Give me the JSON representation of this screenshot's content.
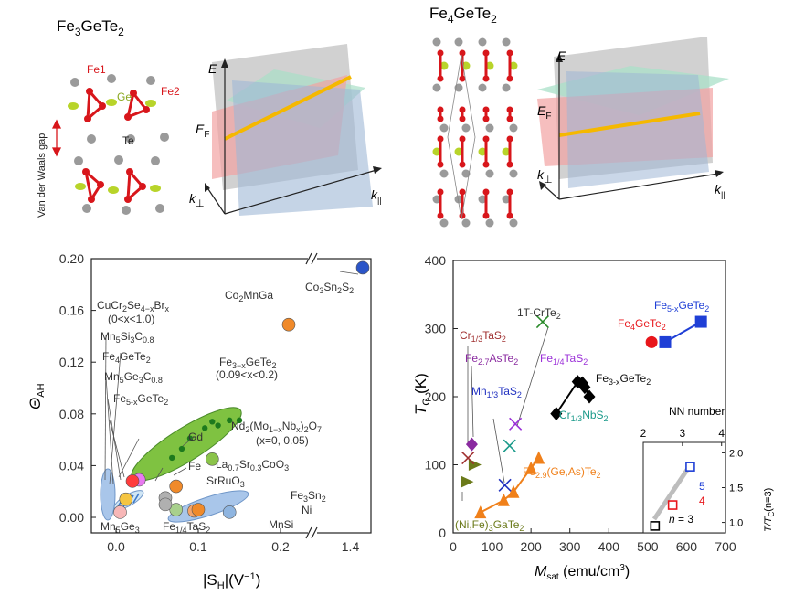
{
  "panels": {
    "top_left": {
      "title_pre": "Fe",
      "title_s1": "3",
      "title_mid": "GeTe",
      "title_s2": "2",
      "labels": {
        "fe1": "Fe1",
        "fe2": "Fe2",
        "ge": "Ge",
        "te": "Te",
        "vdw": "Van der Waals gap"
      },
      "band_axes": {
        "e": "E",
        "ef_main": "E",
        "ef_sub": "F",
        "kperp_main": "k",
        "kperp_sub": "⊥",
        "kpar_main": "k",
        "kpar_sub": "||"
      }
    },
    "top_right": {
      "title_pre": "Fe",
      "title_s1": "4",
      "title_mid": "GeTe",
      "title_s2": "2",
      "band_axes": {
        "e": "E",
        "ef_main": "E",
        "ef_sub": "F",
        "kperp_main": "k",
        "kperp_sub": "⊥",
        "kpar_main": "k",
        "kpar_sub": "||"
      }
    }
  },
  "colors": {
    "fe": "#d8161b",
    "ge": "#b8d42a",
    "te": "#9a9a9a",
    "fermi": "#f5b800",
    "green_blob": "#7fc241",
    "blue_blob": "#a9c6ea",
    "orange": "#f08a2a"
  },
  "chart_data": [
    {
      "type": "scatter",
      "ylabel_main": "Θ",
      "ylabel_sub": "AH",
      "xlabel_main": "|S",
      "xlabel_sub": "H",
      "xlabel_unit": "|(V",
      "xlabel_sup": "−1",
      "xlabel_close": ")",
      "xlim": [
        -0.03,
        0.31
      ],
      "ylim": [
        -0.012,
        0.2
      ],
      "x_break_value": 0.3,
      "x_ticks": [
        0.0,
        0.1,
        0.2
      ],
      "x_ticks_after_break": [
        "1.4"
      ],
      "x_ticks_after_break_pos": [
        0.285
      ],
      "y_ticks": [
        "0.00",
        "0.04",
        "0.08",
        "0.12",
        "0.16",
        "0.20"
      ],
      "y_tick_values": [
        0.0,
        0.04,
        0.08,
        0.12,
        0.16,
        0.2
      ],
      "points": [
        {
          "label": "Co3Sn2S2",
          "x": 0.3,
          "y": 0.193,
          "color": "#2b55c8"
        },
        {
          "label": "Co2MnGa",
          "x": 0.21,
          "y": 0.149,
          "color": "#f08a2a"
        },
        {
          "label": "Gd",
          "x": 0.117,
          "y": 0.045,
          "color": "#8bc34a"
        },
        {
          "label": "Fe",
          "x": 0.073,
          "y": 0.024,
          "color": "#f08a2a"
        },
        {
          "label": "SrRuO3",
          "x": 0.06,
          "y": 0.015,
          "color": "#b0b0b0"
        },
        {
          "label": "Ni",
          "x": 0.095,
          "y": 0.005,
          "color": "#f5a46a"
        },
        {
          "label": "Mn5Ge3",
          "x": 0.005,
          "y": 0.004,
          "color": "#f7b7b7"
        },
        {
          "label": "Fe1/4TaS2",
          "x": 0.1,
          "y": 0.006,
          "color": "#f08a2a"
        },
        {
          "label": "MnSi",
          "x": 0.138,
          "y": 0.004,
          "color": "#8fb5e0"
        },
        {
          "label": "La0.7Sr0.3CoO3",
          "x": 0.073,
          "y": 0.006,
          "color": "#a8d08d"
        },
        {
          "label": "Fe3Sn2",
          "x": 0.06,
          "y": 0.01,
          "color": "#b0b0b0"
        },
        {
          "label": "Fe4GeTe2",
          "x": 0.028,
          "y": 0.029,
          "color": "#e87aef"
        },
        {
          "label": "Fe5-xGeTe2",
          "x": 0.02,
          "y": 0.028,
          "color": "#ff3b3b"
        },
        {
          "label": "CuCr2Se4-xBrx",
          "x": 0.012,
          "y": 0.014,
          "color": "#f5c542"
        }
      ],
      "fe3gete2_points": [
        {
          "x": 0.068,
          "y": 0.046
        },
        {
          "x": 0.08,
          "y": 0.053
        },
        {
          "x": 0.09,
          "y": 0.061
        },
        {
          "x": 0.108,
          "y": 0.069
        },
        {
          "x": 0.124,
          "y": 0.071
        },
        {
          "x": 0.138,
          "y": 0.075
        },
        {
          "x": 0.15,
          "y": 0.075
        },
        {
          "x": 0.117,
          "y": 0.074
        }
      ],
      "labels": {
        "cucr_main": "CuCr",
        "cucr_s1": "2",
        "cucr_mid": "Se",
        "cucr_s2": "4−x",
        "cucr_end": "Br",
        "cucr_s3": "x",
        "cucr_range": "(0<x<1.0)",
        "mn5si_main": "Mn",
        "mn5si_s1": "5",
        "mn5si_mid": "Si",
        "mn5si_s2": "3",
        "mn5si_end": "C",
        "mn5si_s3": "0.8",
        "fe4_main": "Fe",
        "fe4_s1": "4",
        "fe4_mid": "GeTe",
        "fe4_s2": "2",
        "mn5ge3c_main": "Mn",
        "mn5ge3c_s1": "5",
        "mn5ge3c_mid": "Ge",
        "mn5ge3c_s2": "3",
        "mn5ge3c_end": "C",
        "mn5ge3c_s3": "0.8",
        "fe5_main": "Fe",
        "fe5_s1": "5-x",
        "fe5_mid": "GeTe",
        "fe5_s2": "2",
        "co2_main": "Co",
        "co2_s1": "2",
        "co2_mid": "MnGa",
        "fe3x_main": "Fe",
        "fe3x_s1": "3−x",
        "fe3x_mid": "GeTe",
        "fe3x_s2": "2",
        "fe3x_range": "(0.09<x<0.2)",
        "gd": "Gd",
        "nd_main": "Nd",
        "nd_s1": "2",
        "nd_mid": "(Mo",
        "nd_s2": "1−x",
        "nd_end": "Nb",
        "nd_s3": "x",
        "nd_end2": ")",
        "nd_s4": "2",
        "nd_end3": "O",
        "nd_s5": "7",
        "nd_range": "(x=0, 0.05)",
        "fe": "Fe",
        "la_main": "La",
        "la_s1": "0.7",
        "la_mid": "Sr",
        "la_s2": "0.3",
        "la_end": "CoO",
        "la_s3": "3",
        "sr_main": "SrRuO",
        "sr_s1": "3",
        "fe3sn_main": "Fe",
        "fe3sn_s1": "3",
        "fe3sn_mid": "Sn",
        "fe3sn_s2": "2",
        "ni": "Ni",
        "mnsi": "MnSi",
        "fe14_main": "Fe",
        "fe14_s1": "1/4",
        "fe14_mid": "TaS",
        "fe14_s2": "2",
        "mn5ge3_main": "Mn",
        "mn5ge3_s1": "5",
        "mn5ge3_mid": "Ge",
        "mn5ge3_s2": "3",
        "co3_main": "Co",
        "co3_s1": "3",
        "co3_mid": "Sn",
        "co3_s2": "2",
        "co3_end": "S",
        "co3_s3": "2"
      }
    },
    {
      "type": "scatter",
      "ylabel_main": "T",
      "ylabel_sub": "C",
      "ylabel_unit": " (K)",
      "xlabel_main": "M",
      "xlabel_sub": "sat",
      "xlabel_unit": " (emu/cm",
      "xlabel_sup": "3",
      "xlabel_close": ")",
      "xlim": [
        0,
        700
      ],
      "ylim": [
        0,
        400
      ],
      "x_ticks": [
        0,
        100,
        200,
        300,
        400,
        500,
        600,
        700
      ],
      "y_ticks": [
        0,
        100,
        200,
        300,
        400
      ],
      "series": [
        {
          "name": "Fe3-xGeTe2",
          "marker": "diamond",
          "color": "#000000",
          "points": [
            [
              265,
              175
            ],
            [
              320,
              222
            ],
            [
              332,
              220
            ],
            [
              350,
              200
            ],
            [
              338,
              214
            ]
          ]
        },
        {
          "name": "Fe4GeTe2",
          "marker": "circle",
          "color": "#e8161b",
          "points": [
            [
              510,
              280
            ]
          ]
        },
        {
          "name": "Fe5-xGeTe2",
          "marker": "square",
          "color": "#1f3fd6",
          "points": [
            [
              545,
              280
            ],
            [
              637,
              310
            ]
          ]
        },
        {
          "name": "Fe2.9(Ge,As)Te2",
          "marker": "triangle",
          "color": "#f0801a",
          "points": [
            [
              70,
              30
            ],
            [
              130,
              48
            ],
            [
              155,
              60
            ],
            [
              200,
              95
            ],
            [
              220,
              110
            ]
          ]
        },
        {
          "name": "(Ni,Fe)3GaTe2",
          "marker": "triangle-right",
          "color": "#6b7a1a",
          "points": [
            [
              35,
              75
            ],
            [
              55,
              100
            ]
          ]
        },
        {
          "name": "1T-CrTe2",
          "marker": "x",
          "color": "#2a8a2a",
          "points": [
            [
              230,
              310
            ]
          ]
        },
        {
          "name": "Cr1/3TaS2",
          "marker": "x",
          "color": "#a03030",
          "points": [
            [
              38,
              110
            ]
          ]
        },
        {
          "name": "Fe2.7AsTe2",
          "marker": "diamond",
          "color": "#8a2aa0",
          "points": [
            [
              48,
              130
            ]
          ]
        },
        {
          "name": "Fe1/4TaS2",
          "marker": "x",
          "color": "#9b30d8",
          "points": [
            [
              160,
              160
            ]
          ]
        },
        {
          "name": "Mn1/3TaS2",
          "marker": "x",
          "color": "#2030c0",
          "points": [
            [
              133,
              70
            ]
          ]
        },
        {
          "name": "Cr1/3NbS2",
          "marker": "x",
          "color": "#1a9a8a",
          "points": [
            [
              145,
              128
            ]
          ]
        }
      ],
      "labels": {
        "crte": "1T-CrTe",
        "crte_s": "2",
        "cr13_main": "Cr",
        "cr13_s1": "1/3",
        "cr13_mid": "TaS",
        "cr13_s2": "2",
        "fe27_main": "Fe",
        "fe27_s1": "2.7",
        "fe27_mid": "AsTe",
        "fe27_s2": "2",
        "fe14_main": "Fe",
        "fe14_s1": "1/4",
        "fe14_mid": "TaS",
        "fe14_s2": "2",
        "mn13_main": "Mn",
        "mn13_s1": "1/3",
        "mn13_mid": "TaS",
        "mn13_s2": "2",
        "cr13nb_main": "Cr",
        "cr13nb_s1": "1/3",
        "cr13nb_mid": "NbS",
        "cr13nb_s2": "2",
        "fe3x_main": "Fe",
        "fe3x_s1": "3-x",
        "fe3x_mid": "GeTe",
        "fe3x_s2": "2",
        "fe4_main": "Fe",
        "fe4_s1": "4",
        "fe4_mid": "GeTe",
        "fe4_s2": "2",
        "fe5_main": "Fe",
        "fe5_s1": "5-x",
        "fe5_mid": "GeTe",
        "fe5_s2": "2",
        "fe29_main": "Fe",
        "fe29_s1": "2.9",
        "fe29_mid": "(Ge,As)Te",
        "fe29_s2": "2",
        "nife_main": "(Ni,Fe)",
        "nife_s1": "3",
        "nife_mid": "GaTe",
        "nife_s2": "2"
      },
      "inset": {
        "type": "scatter",
        "title": "NN number",
        "top_ticks": [
          "2",
          "3",
          "4"
        ],
        "top_tick_values": [
          2,
          3,
          4
        ],
        "right_ticks": [
          "1.0",
          "1.5",
          "2.0"
        ],
        "right_tick_values": [
          1.0,
          1.5,
          2.0
        ],
        "ylabel": "T/T",
        "ylabel_sub": "C",
        "ylabel_end": "(n=3)",
        "xlim": [
          2,
          4.1
        ],
        "ylim": [
          0.85,
          2.15
        ],
        "points": [
          {
            "nn": 2.3,
            "ratio": 0.95,
            "color": "#000000",
            "label": "3"
          },
          {
            "nn": 2.75,
            "ratio": 1.25,
            "color": "#e8161b",
            "label": "4"
          },
          {
            "nn": 3.2,
            "ratio": 1.8,
            "color": "#1f3fd6",
            "label": "5"
          }
        ],
        "legend_label": "n = 3",
        "legend_n": "n",
        "legend_eq": " = 3"
      }
    }
  ]
}
